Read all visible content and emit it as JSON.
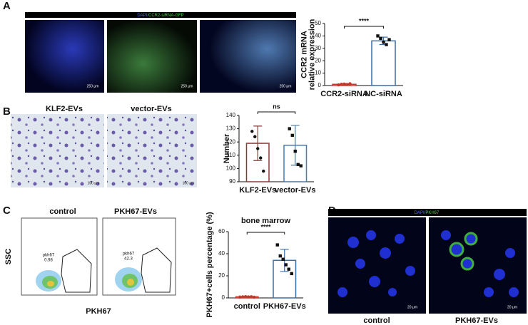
{
  "panel_labels": [
    "A",
    "B",
    "C",
    "D"
  ],
  "panel_a": {
    "image_title": [
      "DAPI/",
      "CCR2-siRNA-GFP"
    ],
    "scale_bars": [
      "250 μm",
      "250 μm",
      "250 μm"
    ]
  },
  "panel_b": {
    "image_labels": [
      "KLF2-EVs",
      "vector-EVs"
    ],
    "scale_bars": [
      "100 μm",
      "100 μm"
    ]
  },
  "panel_c": {
    "plot_titles": [
      "control",
      "PKH67-EVs"
    ],
    "gate_names": [
      "pkh67",
      "pkh67"
    ],
    "gate_values": [
      "0.98",
      "42.3"
    ],
    "y_label": "SSC",
    "x_label": "PKH67"
  },
  "panel_d": {
    "image_title": [
      "DAPI/",
      "PKH67"
    ],
    "image_labels": [
      "control",
      "PKH67-EVs"
    ],
    "scale_bars": [
      "20 μm",
      "20 μm"
    ]
  },
  "chart_data": [
    {
      "type": "bar",
      "y_label": [
        "CCR2 mRNA",
        "relative expression"
      ],
      "categories": [
        "CCR2-siRNA",
        "NC-siRNA"
      ],
      "values": [
        1,
        36
      ],
      "errors": [
        0.5,
        3
      ],
      "points": [
        [
          0.5,
          1,
          1.2,
          0.8,
          1.5
        ],
        [
          40,
          38,
          35,
          33,
          37
        ]
      ],
      "colors": [
        "#c0392b",
        "#3a6ea5"
      ],
      "point_colors": [
        "#c0392b",
        "#111111"
      ],
      "ylim": [
        0,
        50
      ],
      "yticks": [
        0,
        10,
        20,
        30,
        40,
        50
      ],
      "annotation": "****"
    },
    {
      "type": "bar",
      "y_label": [
        "Number"
      ],
      "categories": [
        "KLF2-EVs",
        "vector-EVs"
      ],
      "values": [
        119,
        117.5
      ],
      "errors": [
        13,
        15
      ],
      "points": [
        [
          128,
          124,
          115,
          108,
          98
        ],
        [
          130,
          125,
          113,
          103,
          102
        ]
      ],
      "colors": [
        "#8b3a3a",
        "#4a7aa8"
      ],
      "point_colors": [
        "#111111",
        "#111111"
      ],
      "ylim": [
        90,
        140
      ],
      "yticks": [
        90,
        100,
        110,
        120,
        130,
        140
      ],
      "annotation": "ns"
    },
    {
      "type": "bar",
      "title": "bone marrow",
      "y_label": [
        "PKH67+cells percentage (%)"
      ],
      "categories": [
        "control",
        "PKH67-EVs"
      ],
      "values": [
        1,
        34
      ],
      "errors": [
        0.5,
        10
      ],
      "points": [
        [
          0.8,
          1,
          1.2,
          0.9,
          1.1,
          0.7
        ],
        [
          48,
          38,
          35,
          30,
          26,
          22
        ]
      ],
      "colors": [
        "#c0392b",
        "#3a6ea5"
      ],
      "point_colors": [
        "#c0392b",
        "#111111"
      ],
      "ylim": [
        0,
        60
      ],
      "yticks": [
        0,
        20,
        40,
        60
      ],
      "annotation": "****"
    }
  ]
}
